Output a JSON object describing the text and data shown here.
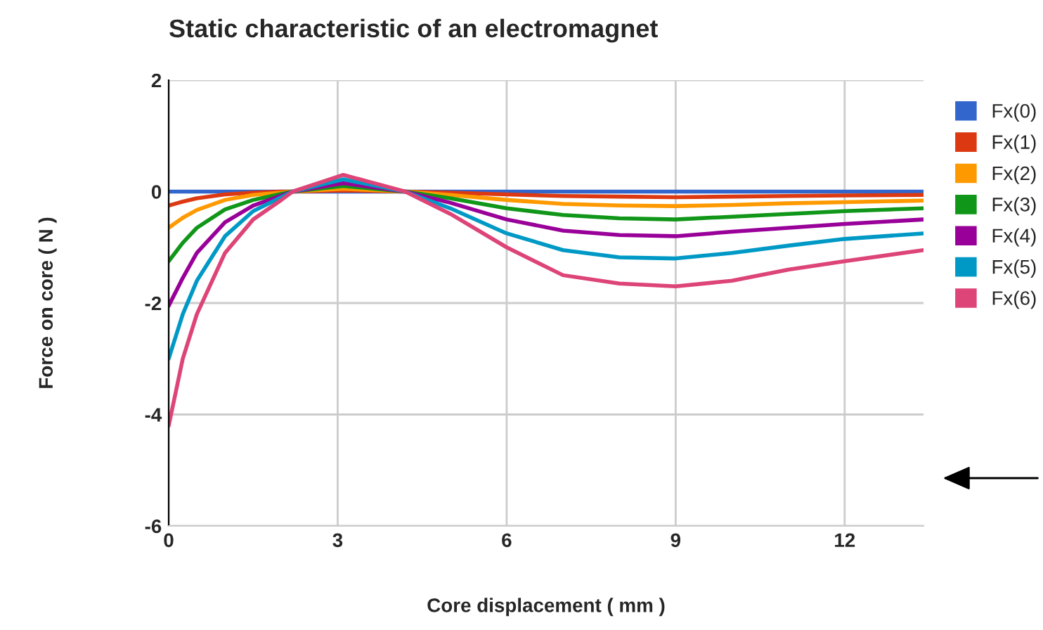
{
  "chart_data": {
    "type": "line",
    "title": "Static characteristic of an electromagnet",
    "xlabel": "Core displacement ( mm )",
    "ylabel": "Force on core ( N )",
    "x": [
      0,
      0.25,
      0.5,
      1,
      1.5,
      2,
      2.2,
      3.1,
      4.2,
      5,
      6,
      7,
      8,
      9,
      10,
      11,
      12,
      13.4
    ],
    "series": [
      {
        "name": "Fx(0)",
        "color": "#3366cc",
        "values": [
          0,
          0,
          0,
          0,
          0,
          0,
          0,
          0,
          0,
          0,
          0,
          0,
          0,
          0,
          0,
          0,
          0,
          0
        ]
      },
      {
        "name": "Fx(1)",
        "color": "#dc3912",
        "values": [
          -0.25,
          -0.18,
          -0.12,
          -0.05,
          -0.02,
          0,
          0,
          0.02,
          0,
          -0.02,
          -0.05,
          -0.08,
          -0.09,
          -0.1,
          -0.09,
          -0.08,
          -0.07,
          -0.06
        ]
      },
      {
        "name": "Fx(2)",
        "color": "#ff9900",
        "values": [
          -0.65,
          -0.47,
          -0.33,
          -0.15,
          -0.06,
          -0.02,
          0,
          0.05,
          0,
          -0.06,
          -0.15,
          -0.22,
          -0.25,
          -0.26,
          -0.24,
          -0.21,
          -0.19,
          -0.16
        ]
      },
      {
        "name": "Fx(3)",
        "color": "#109618",
        "values": [
          -1.25,
          -0.92,
          -0.65,
          -0.32,
          -0.15,
          -0.04,
          0,
          0.1,
          0,
          -0.12,
          -0.3,
          -0.42,
          -0.48,
          -0.5,
          -0.45,
          -0.4,
          -0.35,
          -0.3
        ]
      },
      {
        "name": "Fx(4)",
        "color": "#990099",
        "values": [
          -2.05,
          -1.55,
          -1.1,
          -0.55,
          -0.25,
          -0.07,
          0,
          0.15,
          0,
          -0.2,
          -0.5,
          -0.7,
          -0.78,
          -0.8,
          -0.72,
          -0.65,
          -0.58,
          -0.5
        ]
      },
      {
        "name": "Fx(5)",
        "color": "#0099c6",
        "values": [
          -3.0,
          -2.2,
          -1.6,
          -0.8,
          -0.35,
          -0.1,
          0,
          0.22,
          0,
          -0.3,
          -0.75,
          -1.05,
          -1.18,
          -1.2,
          -1.1,
          -0.97,
          -0.85,
          -0.75
        ]
      },
      {
        "name": "Fx(6)",
        "color": "#dd4477",
        "values": [
          -4.2,
          -3.0,
          -2.2,
          -1.1,
          -0.5,
          -0.15,
          0,
          0.3,
          0,
          -0.4,
          -1.0,
          -1.5,
          -1.65,
          -1.7,
          -1.6,
          -1.4,
          -1.25,
          -1.05
        ]
      }
    ],
    "xlim": [
      0,
      13.4
    ],
    "xticks": [
      0,
      3,
      6,
      9,
      12
    ],
    "ylim": [
      -6,
      2
    ],
    "yticks": [
      -6,
      -4,
      -2,
      0,
      2
    ],
    "grid": true,
    "legend": "right",
    "marker": "none",
    "line_style": "solid"
  }
}
